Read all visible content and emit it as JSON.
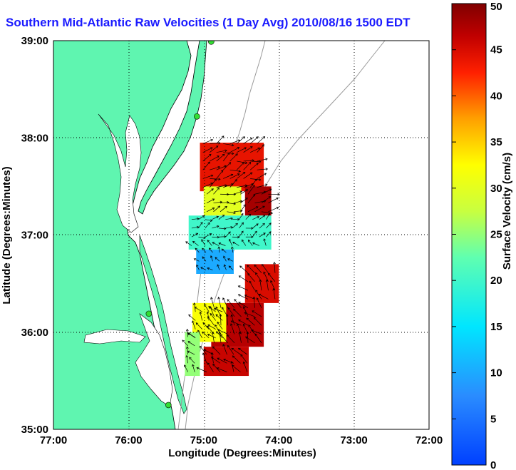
{
  "title": "Southern Mid-Atlantic Raw Velocities (1 Day Avg) 2010/08/16 1500 EDT",
  "colors": {
    "title": "#1a1aff",
    "land": "#5ff5b0",
    "ocean": "#ffffff",
    "coast": "#000000",
    "bathymetry": "#9a9a9a",
    "station": "#33dd33",
    "vector": "#000000"
  },
  "axes": {
    "xlabel": "Longitude (Degrees:Minutes)",
    "ylabel": "Latitude (Degrees:Minutes)",
    "xticks": [
      "77:00",
      "76:00",
      "75:00",
      "74:00",
      "73:00",
      "72:00"
    ],
    "yticks": [
      "39:00",
      "38:00",
      "37:00",
      "36:00",
      "35:00"
    ],
    "grid": "dotted"
  },
  "colorbar": {
    "label": "Surface Velocity (cm/s)",
    "ticks": [
      "50",
      "45",
      "40",
      "35",
      "30",
      "25",
      "20",
      "15",
      "10",
      "5",
      "0"
    ],
    "min": 0,
    "max": 50,
    "colormap": "jet"
  },
  "chart_data": {
    "type": "heatmap",
    "title": "Southern Mid-Atlantic Raw Velocities (1 Day Avg) 2010/08/16 1500 EDT",
    "xlabel": "Longitude (Degrees:Minutes)",
    "ylabel": "Latitude (Degrees:Minutes)",
    "xlim": [
      -77,
      -72
    ],
    "ylim": [
      35,
      39
    ],
    "value_range": [
      0,
      50
    ],
    "units": "cm/s",
    "stations": [
      {
        "lon": -74.9,
        "lat": 38.99
      },
      {
        "lon": -75.09,
        "lat": 38.22
      },
      {
        "lon": -75.73,
        "lat": 36.19
      },
      {
        "lon": -75.47,
        "lat": 35.25
      }
    ],
    "regions": [
      {
        "lon": [
          -75.05,
          -74.2
        ],
        "lat": [
          37.45,
          37.95
        ],
        "speed": 44
      },
      {
        "lon": [
          -74.45,
          -74.1
        ],
        "lat": [
          37.2,
          37.5
        ],
        "speed": 48
      },
      {
        "lon": [
          -75.0,
          -74.5
        ],
        "lat": [
          37.2,
          37.5
        ],
        "speed": 30
      },
      {
        "lon": [
          -75.2,
          -74.1
        ],
        "lat": [
          36.85,
          37.2
        ],
        "speed": 20
      },
      {
        "lon": [
          -75.1,
          -74.6
        ],
        "lat": [
          36.6,
          36.85
        ],
        "speed": 10
      },
      {
        "lon": [
          -74.45,
          -74.0
        ],
        "lat": [
          36.3,
          36.7
        ],
        "speed": 45
      },
      {
        "lon": [
          -74.9,
          -74.2
        ],
        "lat": [
          35.85,
          36.3
        ],
        "speed": 47
      },
      {
        "lon": [
          -75.15,
          -74.7
        ],
        "lat": [
          35.9,
          36.3
        ],
        "speed": 32
      },
      {
        "lon": [
          -75.0,
          -74.4
        ],
        "lat": [
          35.55,
          35.85
        ],
        "speed": 46
      },
      {
        "lon": [
          -75.25,
          -75.05
        ],
        "lat": [
          35.55,
          36.0
        ],
        "speed": 25
      }
    ]
  }
}
